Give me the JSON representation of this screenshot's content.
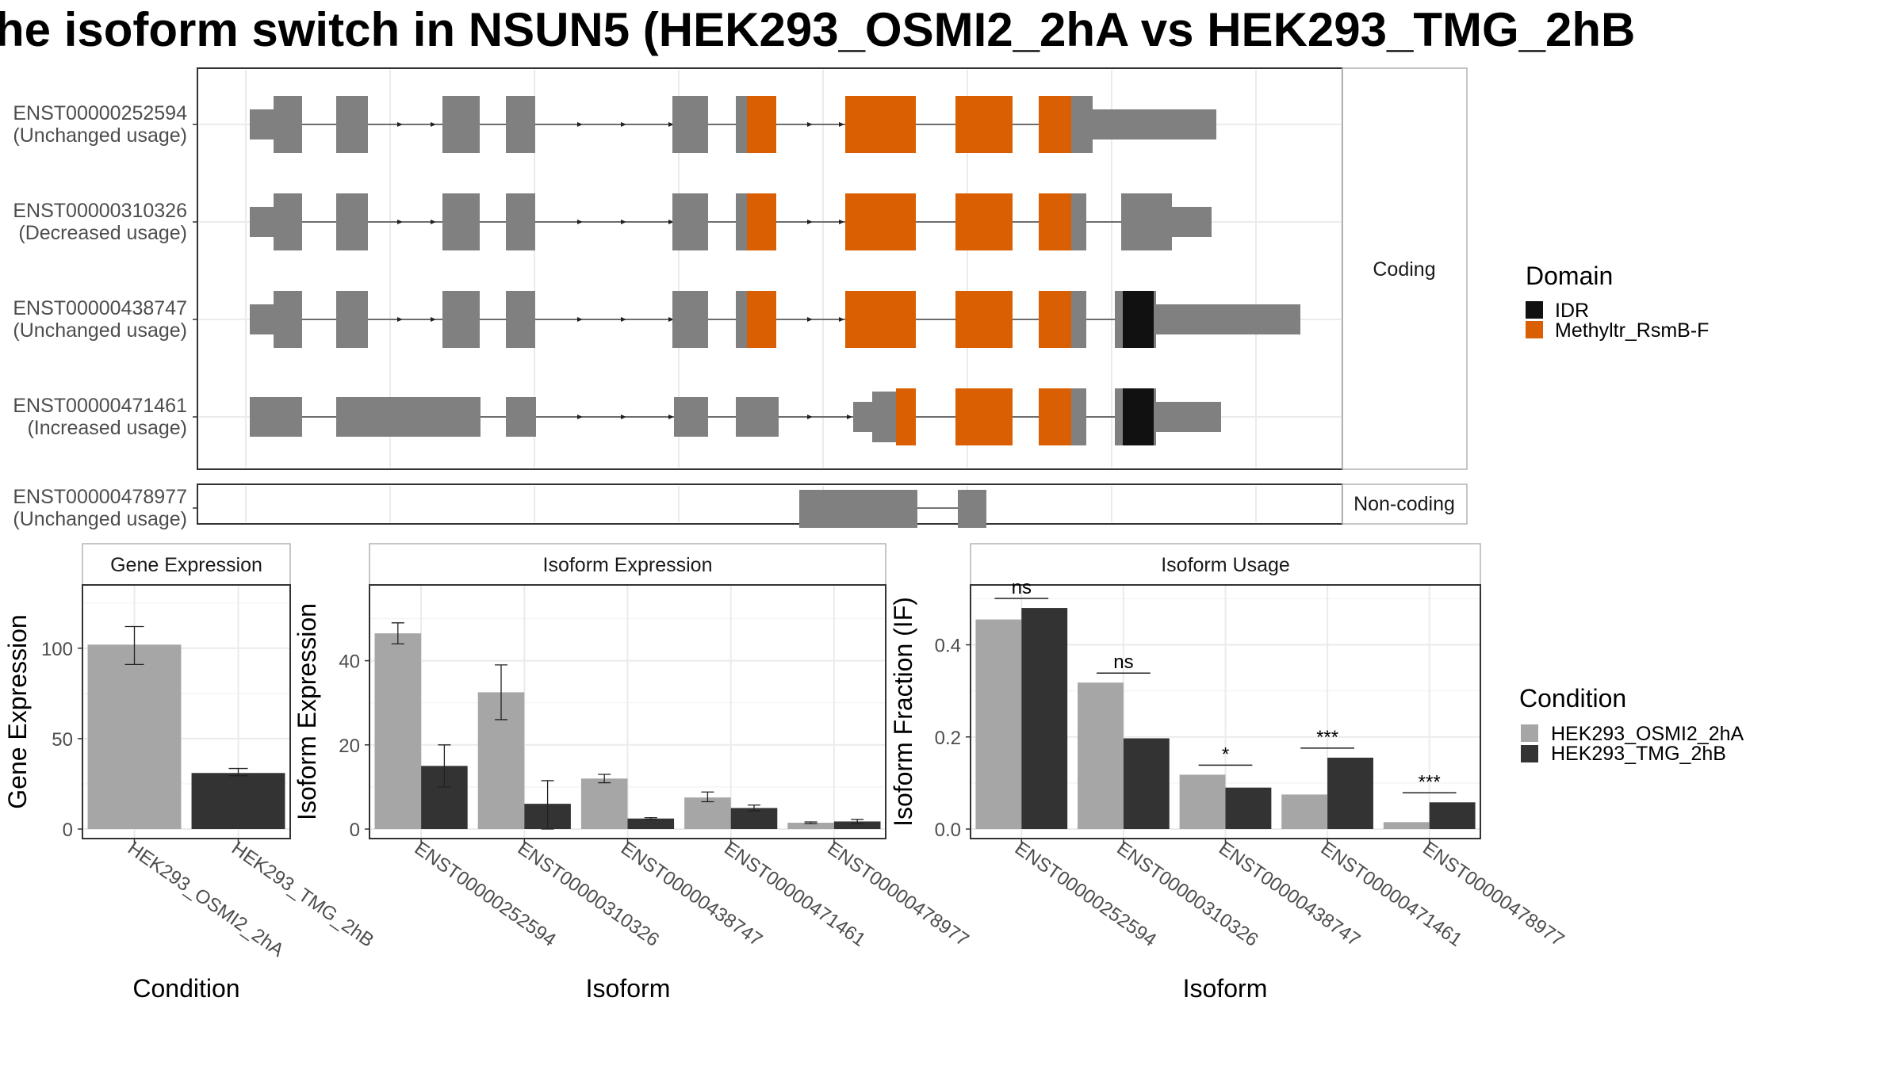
{
  "title": "he isoform switch in NSUN5 (HEK293_OSMI2_2hA vs HEK293_TMG_2hB",
  "colors": {
    "exon": "#808080",
    "domain_IDR": "#111111",
    "domain_Methyltr": "#D95F02",
    "cond_A": "#A6A6A6",
    "cond_B": "#333333",
    "grid": "#ebebeb"
  },
  "transcripts": {
    "facet_coding": "Coding",
    "facet_noncoding": "Non-coding",
    "rows": [
      {
        "id": "ENST00000252594",
        "status": "(Unchanged usage)",
        "group": "Coding"
      },
      {
        "id": "ENST00000310326",
        "status": "(Decreased usage)",
        "group": "Coding"
      },
      {
        "id": "ENST00000438747",
        "status": "(Unchanged usage)",
        "group": "Coding"
      },
      {
        "id": "ENST00000471461",
        "status": "(Increased usage)",
        "group": "Coding"
      },
      {
        "id": "ENST00000478977",
        "status": "(Unchanged usage)",
        "group": "Non-coding"
      }
    ]
  },
  "legend_domain": {
    "title": "Domain",
    "items": [
      {
        "label": "IDR",
        "color": "#111111"
      },
      {
        "label": "Methyltr_RsmB-F",
        "color": "#D95F02"
      }
    ]
  },
  "legend_condition": {
    "title": "Condition",
    "items": [
      {
        "label": "HEK293_OSMI2_2hA",
        "color": "#A6A6A6"
      },
      {
        "label": "HEK293_TMG_2hB",
        "color": "#333333"
      }
    ]
  },
  "chart_data": [
    {
      "type": "bar",
      "title": "Gene Expression",
      "xlabel": "Condition",
      "ylabel": "Gene Expression",
      "ylim": [
        0,
        135
      ],
      "yticks": [
        0,
        50,
        100
      ],
      "categories": [
        "HEK293_OSMI2_2hA",
        "HEK293_TMG_2hB"
      ],
      "values": [
        102,
        31
      ],
      "errors": [
        [
          91,
          112
        ],
        [
          29.5,
          33.5
        ]
      ]
    },
    {
      "type": "bar",
      "title": "Isoform Expression",
      "xlabel": "Isoform",
      "ylabel": "Isoform Expression",
      "ylim": [
        0,
        58
      ],
      "yticks": [
        0,
        20,
        40
      ],
      "categories": [
        "ENST00000252594",
        "ENST00000310326",
        "ENST00000438747",
        "ENST00000471461",
        "ENST00000478977"
      ],
      "series": [
        {
          "name": "HEK293_OSMI2_2hA",
          "values": [
            46.5,
            32.5,
            12,
            7.5,
            1.5
          ],
          "errors": [
            [
              44,
              49
            ],
            [
              26,
              39
            ],
            [
              11,
              13
            ],
            [
              6.5,
              8.8
            ],
            [
              1.3,
              1.7
            ]
          ]
        },
        {
          "name": "HEK293_TMG_2hB",
          "values": [
            15,
            6,
            2.5,
            5,
            1.8
          ],
          "errors": [
            [
              10,
              20
            ],
            [
              0,
              11.5
            ],
            [
              2.3,
              2.7
            ],
            [
              4.3,
              5.7
            ],
            [
              1.3,
              2.3
            ]
          ]
        }
      ]
    },
    {
      "type": "bar",
      "title": "Isoform Usage",
      "xlabel": "Isoform",
      "ylabel": "Isoform Fraction (IF)",
      "ylim": [
        0,
        0.53
      ],
      "yticks": [
        "0.0",
        "0.2",
        "0.4"
      ],
      "categories": [
        "ENST00000252594",
        "ENST00000310326",
        "ENST00000438747",
        "ENST00000471461",
        "ENST00000478977"
      ],
      "series": [
        {
          "name": "HEK293_OSMI2_2hA",
          "values": [
            0.455,
            0.318,
            0.118,
            0.075,
            0.015
          ]
        },
        {
          "name": "HEK293_TMG_2hB",
          "values": [
            0.48,
            0.197,
            0.09,
            0.155,
            0.058
          ]
        }
      ],
      "significance": [
        "ns",
        "ns",
        "*",
        "***",
        "***"
      ]
    }
  ]
}
